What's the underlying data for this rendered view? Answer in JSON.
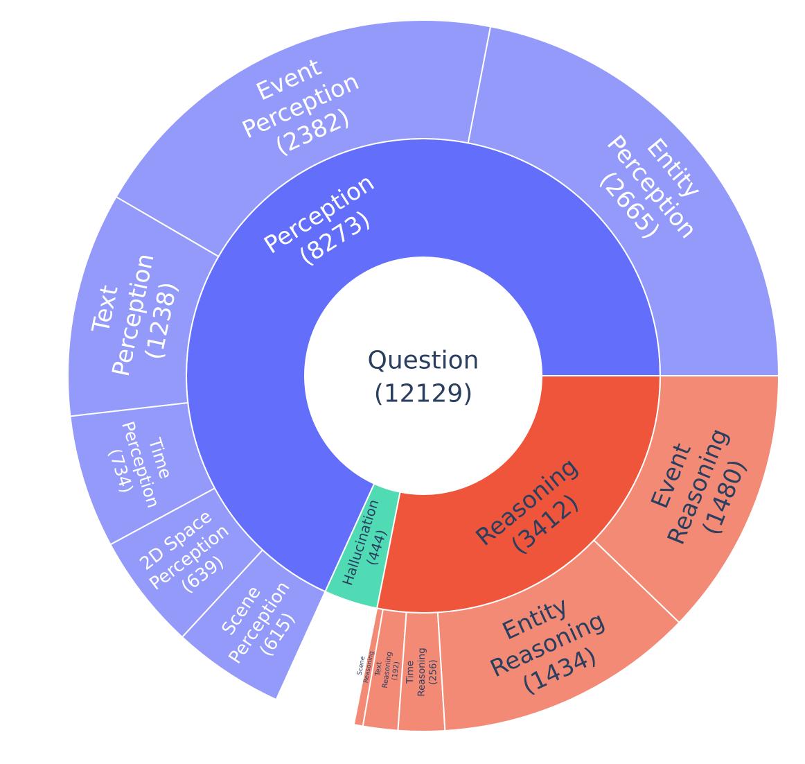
{
  "chart_data": {
    "type": "sunburst",
    "title": "",
    "root": {
      "name": "Question",
      "value": 12129
    },
    "colors": {
      "Perception": "#636efa",
      "Perception_child": "#939af9",
      "Reasoning": "#ef553b",
      "Reasoning_child": "#f38a76",
      "Hallucination": "#50dbb4",
      "root": "#ffffff",
      "text_dark": "#2a3f5f",
      "text_light": "#ffffff"
    },
    "categories": [
      {
        "name": "Perception",
        "value": 8273,
        "children": [
          {
            "name": "Entity Perception",
            "value": 2665
          },
          {
            "name": "Event Perception",
            "value": 2382
          },
          {
            "name": "Text Perception",
            "value": 1238
          },
          {
            "name": "Time Perception",
            "value": 734
          },
          {
            "name": "2D Space Perception",
            "value": 639
          },
          {
            "name": "Scene Perception",
            "value": 615
          }
        ]
      },
      {
        "name": "Hallucination",
        "value": 444,
        "children": []
      },
      {
        "name": "Reasoning",
        "value": 3412,
        "children": [
          {
            "name": "Scene Reasoning",
            "value": 50
          },
          {
            "name": "Text Reasoning",
            "value": 192
          },
          {
            "name": "Time Reasoning",
            "value": 256
          },
          {
            "name": "Entity Reasoning",
            "value": 1434
          },
          {
            "name": "Event Reasoning",
            "value": 1480
          }
        ]
      }
    ]
  }
}
